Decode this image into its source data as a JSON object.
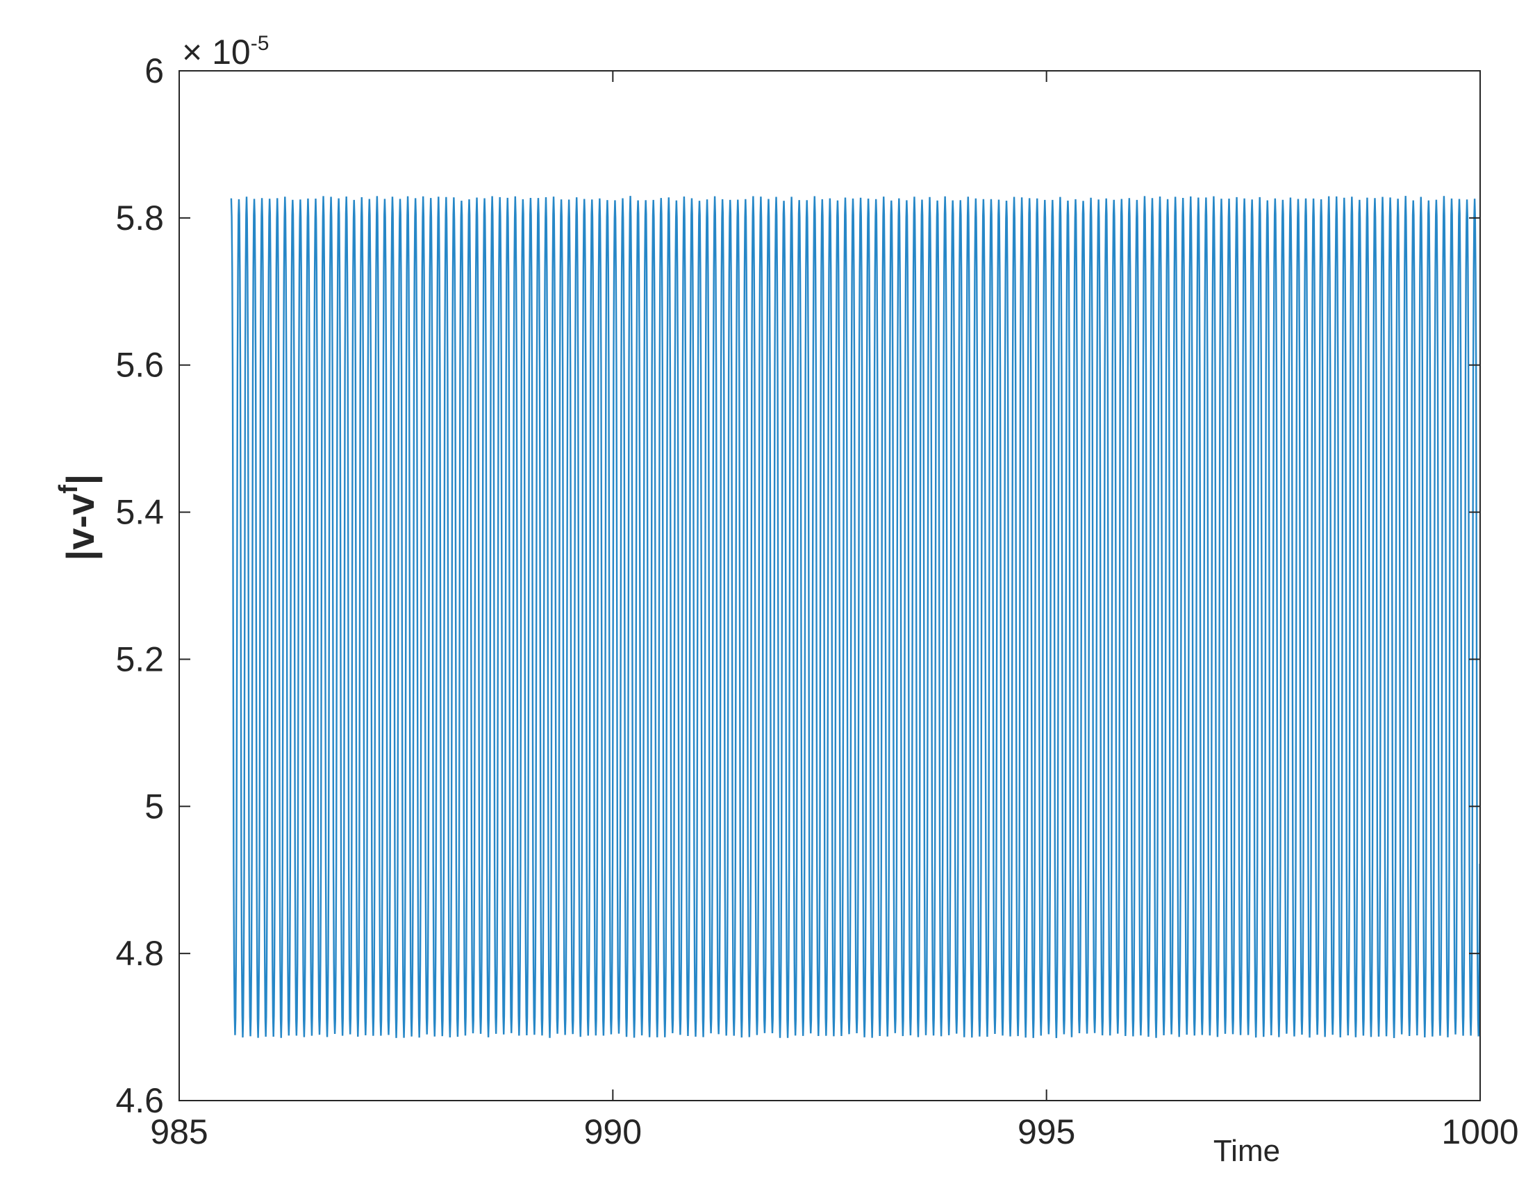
{
  "chart_data": {
    "type": "line",
    "title": "",
    "xlabel": "Time",
    "ylabel": "|v-v",
    "ylabel_superscript": "f",
    "ylabel_close": "|",
    "y_exponent_base": "× 10",
    "y_exponent_power": "-5",
    "xlim": [
      985,
      1000
    ],
    "ylim": [
      4.6,
      6.0
    ],
    "x_ticks": [
      985,
      990,
      995,
      1000
    ],
    "x_tick_labels": [
      "985",
      "990",
      "995",
      "1000"
    ],
    "y_ticks": [
      4.6,
      4.8,
      5.0,
      5.2,
      5.4,
      5.6,
      5.8,
      6.0
    ],
    "y_tick_labels": [
      "4.6",
      "4.8",
      "5",
      "5.2",
      "5.4",
      "5.6",
      "5.8",
      "6"
    ],
    "grid": false,
    "series": [
      {
        "x_start": 985.6,
        "x_end": 1000,
        "y_min": 4.685,
        "y_max": 5.83,
        "period": 0.0885,
        "color": "#0072BD"
      }
    ]
  }
}
